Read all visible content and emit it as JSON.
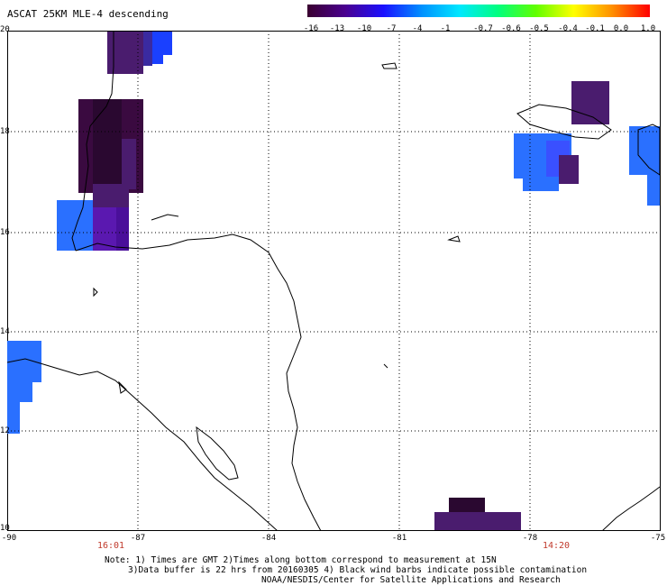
{
  "title": "ASCAT 25KM MLE-4 descending",
  "colorbar": {
    "labels": [
      "-16",
      "-13",
      "-10",
      "-7",
      "-4",
      "-1",
      "-0.7",
      "-0.6",
      "-0.5",
      "-0.4",
      "-0.1",
      "0.0",
      "1.0"
    ],
    "colors": [
      "#3a0030",
      "#4a0090",
      "#1a10ff",
      "#0090ff",
      "#00e8ff",
      "#00ff80",
      "#60ff00",
      "#ffff00",
      "#ff9000",
      "#ff0000"
    ]
  },
  "axes": {
    "lon_labels": [
      "-90",
      "-87",
      "-84",
      "-81",
      "-78",
      "-75"
    ],
    "lat_labels": [
      "20",
      "18",
      "16",
      "14",
      "12",
      "10"
    ]
  },
  "times": [
    "16:01",
    "14:20"
  ],
  "notes": {
    "line1": "Note: 1) Times are GMT 2)Times along bottom correspond to measurement at 15N",
    "line2": "3)Data buffer is 22 hrs from 20160305 4) Black wind barbs indicate possible contamination",
    "line3": "NOAA/NESDIS/Center for Satellite Applications and Research"
  },
  "swath_colors": {
    "dark_purple": "#3a0a40",
    "purple": "#4a1c6e",
    "violet": "#5a18b0",
    "blue": "#1a40ff",
    "azure": "#2a70ff"
  }
}
